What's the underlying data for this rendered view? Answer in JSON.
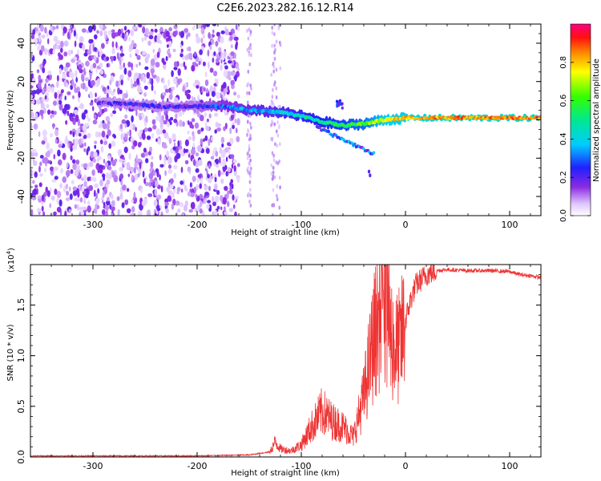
{
  "title": "C2E6.2023.282.16.12.R14",
  "colors": {
    "line": "#ee3333",
    "axis": "#000000",
    "background": "#ffffff"
  },
  "chart_data": [
    {
      "type": "heatmap",
      "xlabel": "Height of straight line (km)",
      "ylabel": "Frequency (Hz)",
      "xlim": [
        -360,
        130
      ],
      "ylim": [
        -50,
        50
      ],
      "x_ticks": [
        "-300",
        "-200",
        "-100",
        "0",
        "100"
      ],
      "x_tick_values": [
        -300,
        -200,
        -100,
        0,
        100
      ],
      "y_ticks": [
        "-40",
        "-20",
        "0",
        "20",
        "40"
      ],
      "y_tick_values": [
        -40,
        -20,
        0,
        20,
        40
      ],
      "grid": false,
      "colorbar": {
        "label": "Normalized spectral amplitude",
        "ticks": [
          "0.0",
          "0.2",
          "0.4",
          "0.6",
          "0.8"
        ],
        "tick_values": [
          0,
          0.2,
          0.4,
          0.6,
          0.8
        ],
        "range": [
          0,
          1
        ],
        "colormap": "rainbow (violet to red/magenta)"
      },
      "ridge": {
        "x": [
          -295,
          -260,
          -230,
          -200,
          -170,
          -150,
          -120,
          -100,
          -80,
          -60,
          -40,
          -20,
          0,
          40,
          80,
          130
        ],
        "y": [
          9,
          8,
          7,
          7,
          7,
          5,
          4,
          2,
          -1,
          -3,
          -2,
          0,
          1,
          1,
          1,
          1
        ],
        "amplitude": [
          0.18,
          0.2,
          0.2,
          0.22,
          0.3,
          0.35,
          0.4,
          0.45,
          0.5,
          0.55,
          0.6,
          0.75,
          0.8,
          0.85,
          0.85,
          0.85
        ]
      },
      "noise_extent_km": [
        -360,
        -160
      ]
    },
    {
      "type": "line",
      "xlabel": "Height of straight line (km)",
      "ylabel": "SNR (10 * v/v)",
      "scale_label": "(x10",
      "scale_exponent": "4",
      "scale_close": ")",
      "xlim": [
        -360,
        130
      ],
      "ylim": [
        0,
        1.9
      ],
      "x_ticks": [
        "-300",
        "-200",
        "-100",
        "0",
        "100"
      ],
      "x_tick_values": [
        -300,
        -200,
        -100,
        0,
        100
      ],
      "y_ticks": [
        "0.0",
        "0.5",
        "1.0",
        "1.5"
      ],
      "y_tick_values": [
        0,
        0.5,
        1.0,
        1.5
      ],
      "grid": false,
      "series": [
        {
          "x": [
            -360,
            -300,
            -250,
            -200,
            -150,
            -130,
            -125,
            -120,
            -110,
            -100,
            -90,
            -80,
            -70,
            -60,
            -50,
            -45,
            -40,
            -35,
            -30,
            -25,
            -20,
            -15,
            -10,
            -5,
            0,
            5,
            10,
            20,
            30,
            40,
            60,
            80,
            100,
            110,
            120,
            130
          ],
          "y": [
            0.01,
            0.01,
            0.01,
            0.01,
            0.02,
            0.05,
            0.15,
            0.08,
            0.06,
            0.12,
            0.3,
            0.45,
            0.35,
            0.3,
            0.2,
            0.4,
            0.6,
            0.9,
            1.2,
            1.4,
            1.5,
            1.25,
            1.05,
            1.1,
            1.35,
            1.55,
            1.7,
            1.8,
            1.84,
            1.85,
            1.84,
            1.84,
            1.83,
            1.8,
            1.79,
            1.77
          ]
        }
      ]
    }
  ]
}
